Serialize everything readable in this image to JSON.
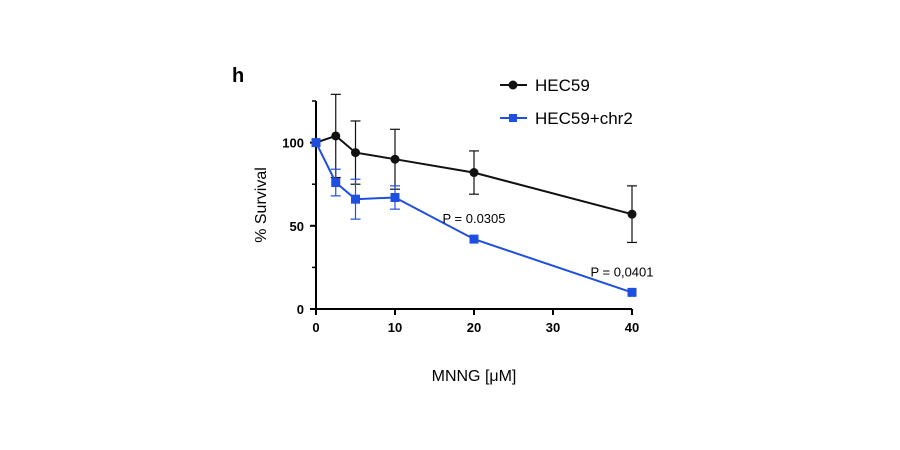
{
  "panel_label": "h",
  "colors": {
    "hec59": "#111111",
    "hec59_chr2": "#1f4fe0",
    "axis": "#000000"
  },
  "chart_data": {
    "type": "line",
    "title": "",
    "xlabel": "MNNG [μM]",
    "ylabel": "% Survival",
    "xlim": [
      0,
      40
    ],
    "ylim": [
      0,
      125
    ],
    "xticks": [
      0,
      10,
      20,
      30,
      40
    ],
    "yticks": [
      0,
      50,
      100
    ],
    "x_tick_labels": [
      "0",
      "10",
      "20",
      "30",
      "40"
    ],
    "y_tick_labels": [
      "0",
      "50",
      "100"
    ],
    "legend_position": "top-right",
    "series": [
      {
        "name": "HEC59",
        "marker": "circle",
        "color": "#111111",
        "points": [
          {
            "x": 0,
            "y": 100,
            "err": 0
          },
          {
            "x": 2.5,
            "y": 104,
            "err": 25
          },
          {
            "x": 5,
            "y": 94,
            "err": 19
          },
          {
            "x": 10,
            "y": 90,
            "err": 18
          },
          {
            "x": 20,
            "y": 82,
            "err": 13
          },
          {
            "x": 40,
            "y": 57,
            "err": 17
          }
        ]
      },
      {
        "name": "HEC59+chr2",
        "marker": "square",
        "color": "#1f4fe0",
        "points": [
          {
            "x": 0,
            "y": 100,
            "err": 0
          },
          {
            "x": 2.5,
            "y": 76,
            "err": 8
          },
          {
            "x": 5,
            "y": 66,
            "err": 12
          },
          {
            "x": 10,
            "y": 67,
            "err": 7
          },
          {
            "x": 20,
            "y": 42,
            "err": 0
          },
          {
            "x": 40,
            "y": 10,
            "err": 0
          }
        ]
      }
    ],
    "annotations": [
      {
        "text": "P = 0.0305",
        "x": 20,
        "y": 42
      },
      {
        "text": "P = 0,0401",
        "x": 40,
        "y": 10
      }
    ]
  }
}
